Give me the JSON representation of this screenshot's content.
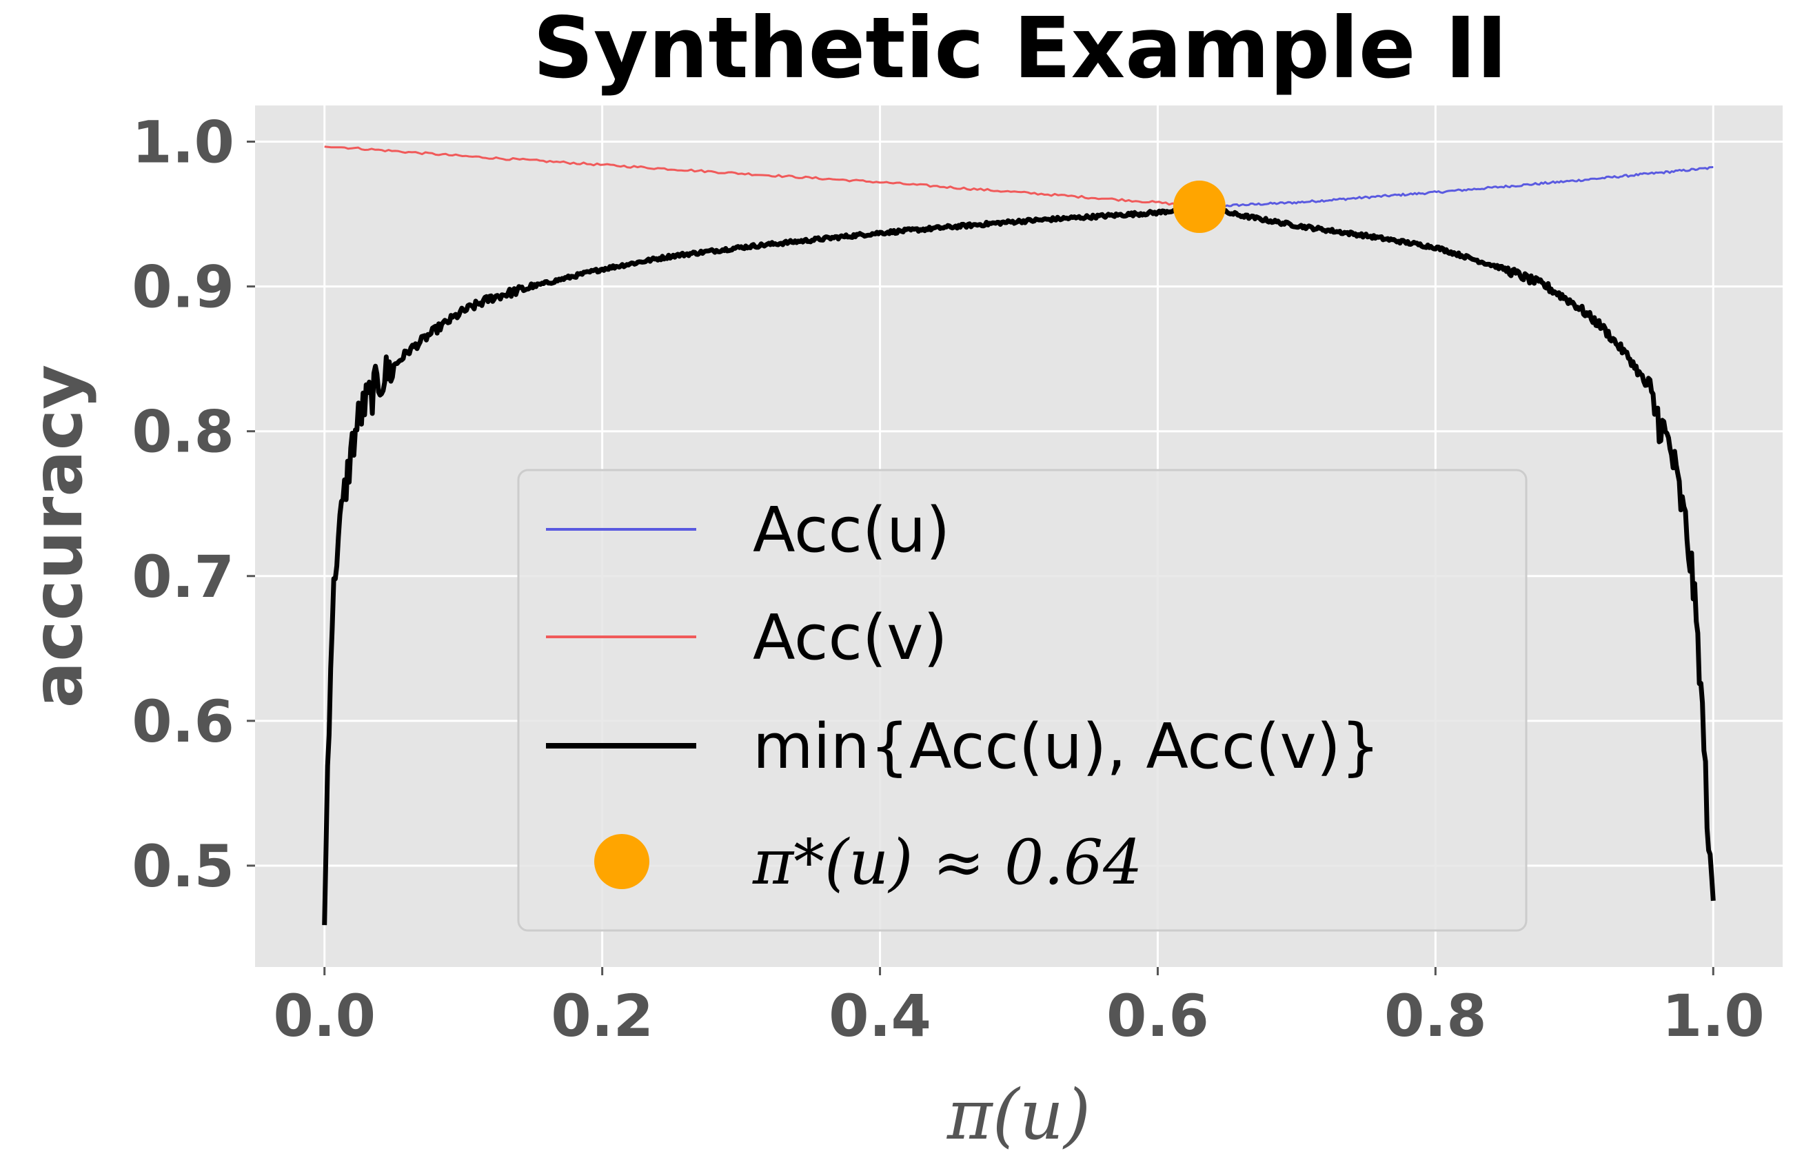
{
  "chart_data": {
    "type": "line",
    "title": "Synthetic Example II",
    "xlabel": "π(u)",
    "ylabel": "accuracy",
    "xlim": [
      -0.05,
      1.05
    ],
    "ylim": [
      0.43,
      1.025
    ],
    "xticks": [
      0.0,
      0.2,
      0.4,
      0.6,
      0.8,
      1.0
    ],
    "xtick_labels": [
      "0.0",
      "0.2",
      "0.4",
      "0.6",
      "0.8",
      "1.0"
    ],
    "yticks": [
      0.5,
      0.6,
      0.7,
      0.8,
      0.9,
      1.0
    ],
    "ytick_labels": [
      "0.5",
      "0.6",
      "0.7",
      "0.8",
      "0.9",
      "1.0"
    ],
    "grid": true,
    "legend_position": "lower-center",
    "background": "#e5e5e5",
    "series": [
      {
        "name": "Acc(u)",
        "color": "#5a5ae0",
        "x": [
          0.63,
          0.7,
          0.8,
          0.9,
          1.0
        ],
        "y": [
          0.955,
          0.958,
          0.965,
          0.973,
          0.982
        ]
      },
      {
        "name": "Acc(v)",
        "color": "#f05a5a",
        "x": [
          0.0,
          0.1,
          0.2,
          0.3,
          0.4,
          0.5,
          0.6,
          0.63
        ],
        "y": [
          0.997,
          0.99,
          0.984,
          0.978,
          0.972,
          0.965,
          0.958,
          0.955
        ]
      },
      {
        "name": "min{Acc(u), Acc(v)}",
        "color": "#000000",
        "x": [
          0.0,
          0.002,
          0.005,
          0.008,
          0.012,
          0.015,
          0.02,
          0.025,
          0.03,
          0.04,
          0.05,
          0.06,
          0.08,
          0.1,
          0.12,
          0.15,
          0.2,
          0.25,
          0.3,
          0.35,
          0.4,
          0.45,
          0.5,
          0.55,
          0.6,
          0.63,
          0.66,
          0.7,
          0.75,
          0.8,
          0.85,
          0.88,
          0.9,
          0.92,
          0.94,
          0.95,
          0.96,
          0.97,
          0.98,
          0.985,
          0.99,
          0.993,
          0.996,
          0.998,
          1.0
        ],
        "y": [
          0.455,
          0.56,
          0.66,
          0.71,
          0.74,
          0.76,
          0.79,
          0.81,
          0.82,
          0.835,
          0.845,
          0.855,
          0.87,
          0.883,
          0.892,
          0.9,
          0.912,
          0.921,
          0.927,
          0.932,
          0.937,
          0.941,
          0.945,
          0.948,
          0.951,
          0.955,
          0.949,
          0.942,
          0.935,
          0.927,
          0.912,
          0.9,
          0.888,
          0.872,
          0.85,
          0.835,
          0.81,
          0.785,
          0.735,
          0.7,
          0.64,
          0.59,
          0.53,
          0.49,
          0.48
        ],
        "noise": true
      }
    ],
    "marker": {
      "name": "π*(u) ≈ 0.64",
      "x": 0.63,
      "y": 0.955,
      "color": "#ffa500"
    },
    "legend_entries": [
      {
        "label": "Acc(u)",
        "kind": "line",
        "color": "#5a5ae0"
      },
      {
        "label": "Acc(v)",
        "kind": "line",
        "color": "#f05a5a"
      },
      {
        "label": "min{Acc(u), Acc(v)}",
        "kind": "line-thick",
        "color": "#000000"
      },
      {
        "label": "π*(u) ≈ 0.64",
        "kind": "marker",
        "color": "#ffa500"
      }
    ]
  }
}
